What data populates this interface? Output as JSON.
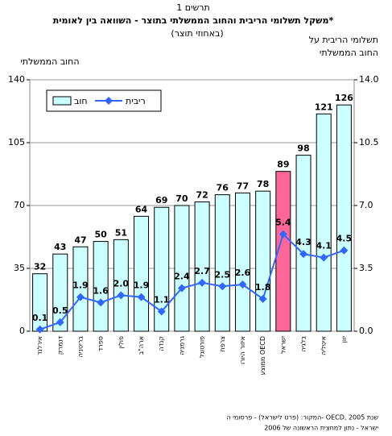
{
  "chart_data": {
    "type": "bar-line",
    "figure_label": "תרשים 1",
    "title": "משקל תשלומי הריבית והחוב הממשלתי בתוצר - השוואה בין לאומית*",
    "subtitle": "(באחוזי תוצר)",
    "ylabel": "החוב הממשלתי",
    "y2label": [
      "תשלומי הריבית על",
      "החוב הממשלתי"
    ],
    "categories": [
      "אירלנד",
      "דנמרק",
      "בריטניה",
      "ספרד",
      "פולין",
      "ארה\"ב",
      "קנדה",
      "גרמניה",
      "פורטוגל",
      "צרפת",
      "איזור היורו",
      "ממוצע OECD",
      "ישראל",
      "בלגיה",
      "איטליה",
      "יוון"
    ],
    "series": [
      {
        "name": "חוב",
        "color": "#ccffff",
        "colors": [
          "#ccffff",
          "#ccffff",
          "#ccffff",
          "#ccffff",
          "#ccffff",
          "#ccffff",
          "#ccffff",
          "#ccffff",
          "#ccffff",
          "#ccffff",
          "#ccffff",
          "#ccffff",
          "#ff6699",
          "#ccffff",
          "#ccffff",
          "#ccffff"
        ],
        "values": [
          32,
          43,
          47,
          50,
          51,
          64,
          69,
          70,
          72,
          76,
          77,
          78,
          89,
          98,
          121,
          126
        ]
      },
      {
        "name": "ריבית",
        "color": "#3366ff",
        "axis": "y2",
        "values": [
          0.1,
          0.5,
          1.9,
          1.6,
          2.0,
          1.9,
          1.1,
          2.4,
          2.7,
          2.5,
          2.6,
          1.8,
          5.4,
          4.3,
          4.1,
          4.5
        ],
        "value_labels": [
          "0.1",
          "0.5",
          "1.9",
          "1.6",
          "2.0",
          "1.9",
          "1.1",
          "2.4",
          "2.7",
          "2.5",
          "2.6",
          "1.8",
          "5.4",
          "4.3",
          "4.1",
          "4.5"
        ]
      }
    ],
    "ylim": [
      0,
      140
    ],
    "yticks": [
      0,
      35,
      70,
      105,
      140
    ],
    "y2lim": [
      0,
      14
    ],
    "y2ticks": [
      {
        "value": 0,
        "label": "0.0"
      },
      3.5,
      {
        "value": 7,
        "label": "7.0"
      },
      10.5,
      {
        "value": 14,
        "label": "14.0"
      }
    ],
    "grid": true,
    "source": [
      "המקור: (פרט לישראל) - פרסומי ה- OECD, שנת 2005",
      "ישראל - נתון למחצית הראשונה של 2006"
    ]
  }
}
